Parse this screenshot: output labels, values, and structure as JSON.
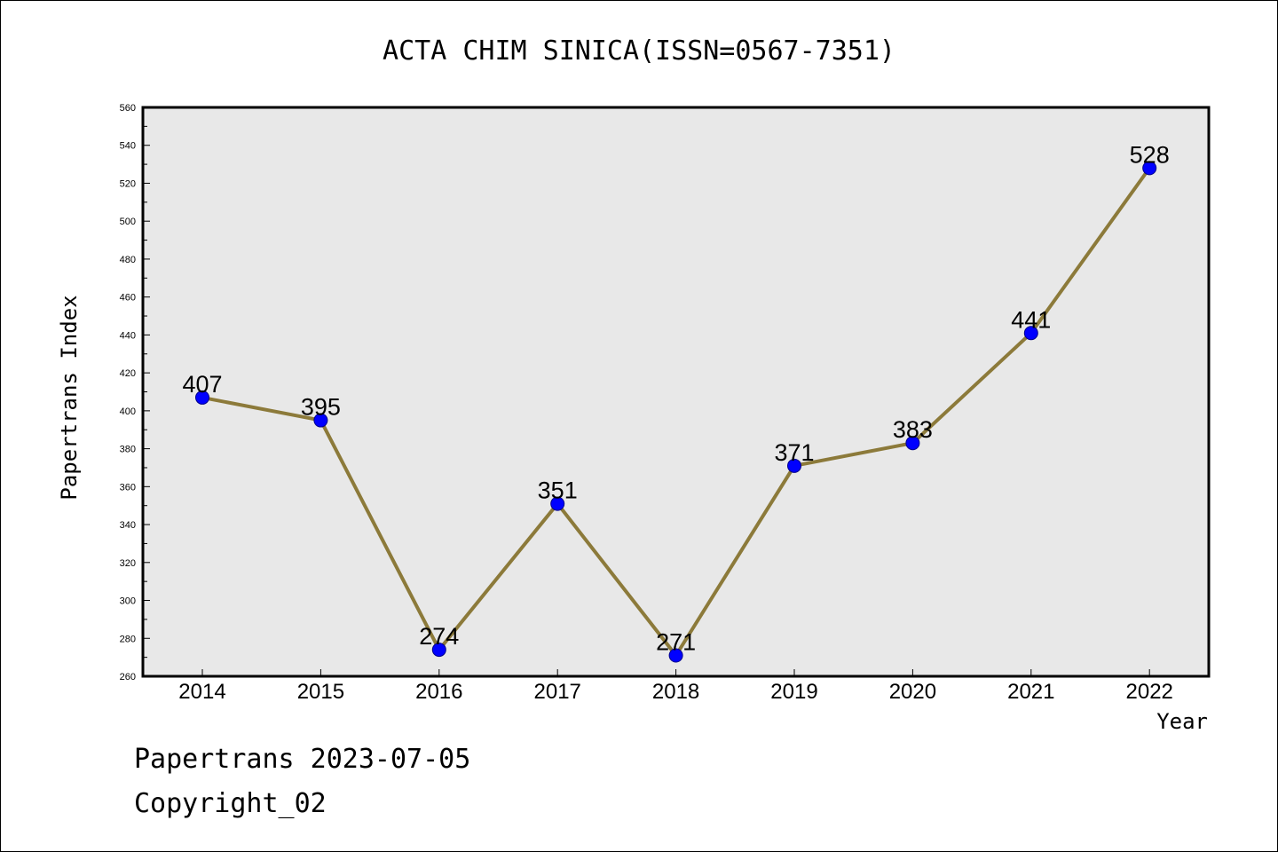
{
  "chart_data": {
    "type": "line",
    "title": "ACTA CHIM SINICA(ISSN=0567-7351)",
    "xlabel": "Year",
    "ylabel": "Papertrans Index",
    "categories": [
      "2014",
      "2015",
      "2016",
      "2017",
      "2018",
      "2019",
      "2020",
      "2021",
      "2022"
    ],
    "series": [
      {
        "values": [
          407,
          395,
          274,
          351,
          271,
          371,
          383,
          441,
          528
        ]
      }
    ],
    "ylim": [
      260,
      560
    ],
    "yticks": [
      260,
      280,
      300,
      320,
      340,
      360,
      380,
      400,
      420,
      440,
      460,
      480,
      500,
      520,
      540,
      560
    ],
    "grid": false,
    "legend": "none",
    "data_labels": true,
    "colors": {
      "line": "#8c7a3a",
      "marker_fill": "#0000ff",
      "marker_stroke": "#00008b",
      "plot_background": "#e8e8e8",
      "axis": "#000000"
    }
  },
  "footer": {
    "line1": "Papertrans 2023-07-05",
    "line2": "Copyright_02"
  }
}
